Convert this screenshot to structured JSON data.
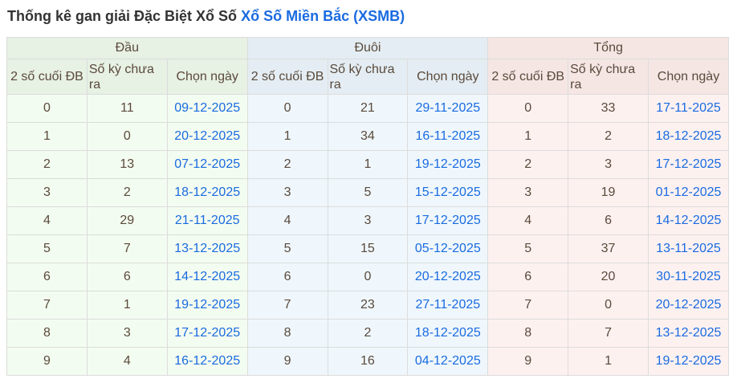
{
  "title": {
    "text": "Thống kê gan giải Đặc Biệt Xổ Số",
    "link": "Xổ Số Miền Bắc (XSMB)"
  },
  "groups": [
    "Đầu",
    "Đuôi",
    "Tổng"
  ],
  "columns": [
    "2 số cuối ĐB",
    "Số kỳ chưa ra",
    "Chọn ngày"
  ],
  "rows": [
    {
      "dau": [
        "0",
        "11",
        "09-12-2025"
      ],
      "duoi": [
        "0",
        "21",
        "29-11-2025"
      ],
      "tong": [
        "0",
        "33",
        "17-11-2025"
      ]
    },
    {
      "dau": [
        "1",
        "0",
        "20-12-2025"
      ],
      "duoi": [
        "1",
        "34",
        "16-11-2025"
      ],
      "tong": [
        "1",
        "2",
        "18-12-2025"
      ]
    },
    {
      "dau": [
        "2",
        "13",
        "07-12-2025"
      ],
      "duoi": [
        "2",
        "1",
        "19-12-2025"
      ],
      "tong": [
        "2",
        "3",
        "17-12-2025"
      ]
    },
    {
      "dau": [
        "3",
        "2",
        "18-12-2025"
      ],
      "duoi": [
        "3",
        "5",
        "15-12-2025"
      ],
      "tong": [
        "3",
        "19",
        "01-12-2025"
      ]
    },
    {
      "dau": [
        "4",
        "29",
        "21-11-2025"
      ],
      "duoi": [
        "4",
        "3",
        "17-12-2025"
      ],
      "tong": [
        "4",
        "6",
        "14-12-2025"
      ]
    },
    {
      "dau": [
        "5",
        "7",
        "13-12-2025"
      ],
      "duoi": [
        "5",
        "15",
        "05-12-2025"
      ],
      "tong": [
        "5",
        "37",
        "13-11-2025"
      ]
    },
    {
      "dau": [
        "6",
        "6",
        "14-12-2025"
      ],
      "duoi": [
        "6",
        "0",
        "20-12-2025"
      ],
      "tong": [
        "6",
        "20",
        "30-11-2025"
      ]
    },
    {
      "dau": [
        "7",
        "1",
        "19-12-2025"
      ],
      "duoi": [
        "7",
        "23",
        "27-11-2025"
      ],
      "tong": [
        "7",
        "0",
        "20-12-2025"
      ]
    },
    {
      "dau": [
        "8",
        "3",
        "17-12-2025"
      ],
      "duoi": [
        "8",
        "2",
        "18-12-2025"
      ],
      "tong": [
        "8",
        "7",
        "13-12-2025"
      ]
    },
    {
      "dau": [
        "9",
        "4",
        "16-12-2025"
      ],
      "duoi": [
        "9",
        "16",
        "04-12-2025"
      ],
      "tong": [
        "9",
        "1",
        "19-12-2025"
      ]
    }
  ]
}
